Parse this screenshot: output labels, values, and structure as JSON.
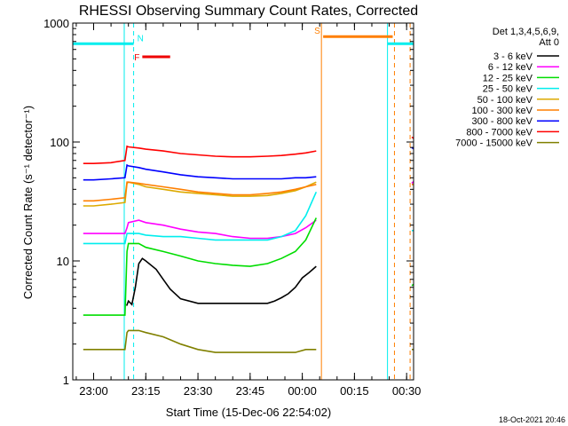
{
  "chart_data": {
    "type": "line",
    "title": "RHESSI Observing Summary Count Rates, Corrected",
    "xlabel": "Start Time (15-Dec-06 22:54:02)",
    "ylabel": "Corrected Count Rate (s⁻¹ detector⁻¹)",
    "y_scale": "log",
    "ylim": [
      1,
      1000
    ],
    "xlim_minutes_after_2300": [
      -6,
      32
    ],
    "x_ticks": [
      "23:00",
      "23:15",
      "23:30",
      "23:45",
      "00:00",
      "00:15",
      "00:30"
    ],
    "y_ticks": [
      "1",
      "10",
      "100",
      "1000"
    ],
    "legend_header": [
      "Det 1,3,4,5,6,9,",
      "Att 0"
    ],
    "legend_position": "right",
    "footer_date": "18-Oct-2021 20:46",
    "series": [
      {
        "name": "3 - 6 keV",
        "color": "#000000",
        "x": [
          9.5,
          10,
          11,
          12,
          13,
          14,
          15,
          18,
          20,
          22,
          25,
          30,
          35,
          40,
          45,
          50,
          52,
          54,
          56,
          58,
          60,
          62,
          64
        ],
        "values": [
          4.2,
          4.6,
          4.3,
          6.0,
          9.5,
          10.5,
          10.0,
          8.5,
          7.0,
          5.8,
          4.8,
          4.4,
          4.4,
          4.4,
          4.4,
          4.4,
          4.6,
          4.9,
          5.3,
          6.0,
          7.2,
          8.0,
          9.0
        ]
      },
      {
        "name": "6 - 12 keV",
        "color": "#ff00ff",
        "x": [
          -3,
          0,
          5,
          9,
          9.6,
          10,
          13,
          15,
          20,
          25,
          30,
          35,
          40,
          45,
          50,
          54,
          58,
          61,
          64,
          91.5,
          92.5
        ],
        "values": [
          17,
          17,
          17,
          17,
          19,
          21,
          22,
          21,
          20,
          18.5,
          17.5,
          17,
          16,
          15.5,
          15.5,
          16,
          17,
          19,
          22,
          45,
          48
        ]
      },
      {
        "name": "12 - 25 keV",
        "color": "#00dd00",
        "x": [
          -3,
          0,
          5,
          9,
          9.6,
          10,
          13,
          15,
          20,
          25,
          30,
          35,
          40,
          45,
          50,
          54,
          58,
          61,
          64,
          91.5,
          92.5
        ],
        "values": [
          3.5,
          3.5,
          3.5,
          3.5,
          12,
          14,
          14,
          13,
          12,
          11,
          10,
          9.5,
          9.2,
          9,
          9.5,
          10.5,
          12,
          15,
          23,
          6.2,
          6.5
        ]
      },
      {
        "name": "25 - 50 keV",
        "color": "#00eeee",
        "x": [
          -3,
          0,
          5,
          9,
          9.6,
          10,
          13,
          15,
          20,
          25,
          30,
          35,
          40,
          45,
          50,
          54,
          58,
          61,
          64,
          91.5,
          92.5
        ],
        "values": [
          14,
          14,
          14,
          14,
          17,
          17,
          17,
          16.5,
          16,
          16,
          15.5,
          15,
          15,
          15,
          15,
          16,
          18,
          24,
          38,
          18,
          18
        ]
      },
      {
        "name": "50 - 100 keV",
        "color": "#ddaa00",
        "x": [
          -3,
          0,
          5,
          9,
          9.6,
          10,
          13,
          15,
          20,
          25,
          30,
          35,
          40,
          45,
          50,
          54,
          58,
          61,
          64,
          91.5,
          92.5
        ],
        "values": [
          29,
          29,
          30,
          31,
          45,
          46,
          44,
          42,
          40,
          38,
          37,
          36,
          35,
          35,
          35.5,
          37,
          39,
          42,
          46,
          44,
          44
        ]
      },
      {
        "name": "100 - 300 keV",
        "color": "#ff7f00",
        "x": [
          -3,
          0,
          5,
          9,
          9.6,
          10,
          13,
          15,
          20,
          25,
          30,
          35,
          40,
          45,
          50,
          54,
          58,
          61,
          64,
          91.5,
          92.5
        ],
        "values": [
          32,
          32,
          33,
          34,
          46,
          46,
          45,
          44,
          42,
          40,
          38,
          37,
          36,
          36,
          37,
          38,
          40,
          42,
          44,
          44,
          44
        ]
      },
      {
        "name": "300 - 800 keV",
        "color": "#0000ff",
        "x": [
          -3,
          0,
          5,
          9,
          9.6,
          10,
          13,
          15,
          20,
          25,
          30,
          35,
          40,
          45,
          50,
          54,
          58,
          61,
          64,
          91.5,
          92.5
        ],
        "values": [
          48,
          48,
          49,
          50,
          64,
          63,
          61,
          59,
          56,
          53,
          51,
          50,
          49,
          49,
          49,
          49,
          50,
          50,
          51,
          90,
          85
        ]
      },
      {
        "name": "800 - 7000 keV",
        "color": "#ff0000",
        "x": [
          -3,
          0,
          5,
          9,
          9.6,
          10,
          13,
          15,
          20,
          25,
          30,
          35,
          40,
          45,
          50,
          54,
          58,
          61,
          64,
          91.5,
          92.5
        ],
        "values": [
          66,
          66,
          67,
          70,
          92,
          91,
          89,
          87,
          84,
          80,
          78,
          76,
          75,
          75,
          76,
          77,
          79,
          81,
          84,
          110,
          105
        ]
      },
      {
        "name": "7000 - 15000 keV",
        "color": "#808000",
        "x": [
          -3,
          0,
          5,
          9,
          9.6,
          10,
          13,
          15,
          20,
          25,
          30,
          35,
          40,
          45,
          50,
          54,
          58,
          61,
          64,
          91.5,
          92.5
        ],
        "values": [
          1.8,
          1.8,
          1.8,
          1.8,
          2.5,
          2.6,
          2.6,
          2.5,
          2.3,
          2.0,
          1.8,
          1.7,
          1.7,
          1.7,
          1.7,
          1.7,
          1.7,
          1.8,
          1.8,
          1.8,
          1.8
        ]
      }
    ],
    "flag_bars": [
      {
        "label": "N",
        "color": "#00eeee",
        "x_start": -6,
        "x_end": 11.5,
        "level": 670
      },
      {
        "label": "F",
        "color": "#ee0000",
        "x_start": 14,
        "x_end": 22,
        "level": 520
      },
      {
        "label": "S",
        "color": "#ff7f00",
        "x_start": 66,
        "x_end": 86,
        "level": 770
      },
      {
        "label": "",
        "color": "#00eeee",
        "x_start": 84.5,
        "x_end": 94,
        "level": 670
      }
    ],
    "vertical_markers": [
      {
        "x": 8.8,
        "color": "#00eeee",
        "style": "solid"
      },
      {
        "x": 11.5,
        "color": "#00eeee",
        "style": "dashed"
      },
      {
        "x": 65.5,
        "color": "#ff7f00",
        "style": "solid"
      },
      {
        "x": 84.5,
        "color": "#00eeee",
        "style": "solid"
      },
      {
        "x": 86.5,
        "color": "#ff7f00",
        "style": "dashed"
      },
      {
        "x": 91.0,
        "color": "#ff7f00",
        "style": "dashed"
      },
      {
        "x": 94.0,
        "color": "#00eeee",
        "style": "dashed"
      }
    ],
    "grid": false
  }
}
